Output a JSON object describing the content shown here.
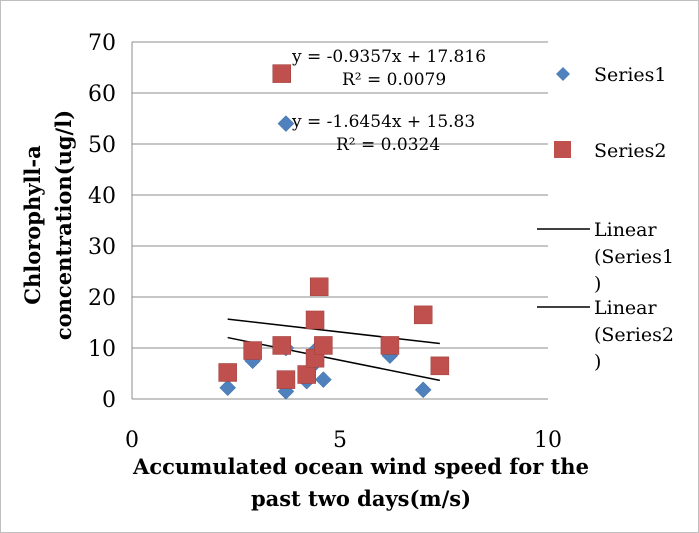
{
  "chart_data": {
    "type": "scatter",
    "title": "",
    "xlabel": [
      "Accumulated ocean wind speed for the",
      "past two days(m/s)"
    ],
    "ylabel": [
      "Chlorophyll-a",
      "concentration(ug/l)"
    ],
    "xlim": [
      0,
      10
    ],
    "ylim": [
      0,
      70
    ],
    "x_ticks": [
      "0",
      "5",
      "10"
    ],
    "y_ticks": [
      "0",
      "10",
      "20",
      "30",
      "40",
      "50",
      "60",
      "70"
    ],
    "grid": "horizontal",
    "legend_position": "right",
    "series": [
      {
        "name": "Series1",
        "marker": "diamond",
        "color": "#4f81bd",
        "points": [
          [
            2.3,
            2.2
          ],
          [
            2.9,
            7.5
          ],
          [
            2.9,
            9.5
          ],
          [
            3.7,
            1.5
          ],
          [
            3.7,
            54
          ],
          [
            3.7,
            10
          ],
          [
            4.2,
            3.5
          ],
          [
            4.4,
            7
          ],
          [
            4.4,
            9.5
          ],
          [
            4.6,
            3.8
          ],
          [
            6.2,
            8.5
          ],
          [
            7.0,
            1.8
          ],
          [
            7.4,
            6.5
          ]
        ]
      },
      {
        "name": "Series2",
        "marker": "square",
        "color": "#c0504d",
        "points": [
          [
            2.3,
            5.2
          ],
          [
            2.9,
            9.5
          ],
          [
            3.6,
            63.8
          ],
          [
            3.6,
            10.5
          ],
          [
            3.7,
            3.8
          ],
          [
            4.2,
            4.8
          ],
          [
            4.4,
            15.5
          ],
          [
            4.4,
            8
          ],
          [
            4.5,
            22
          ],
          [
            4.6,
            10.5
          ],
          [
            6.2,
            10.5
          ],
          [
            7.0,
            16.5
          ],
          [
            7.4,
            6.5
          ]
        ]
      }
    ],
    "trendlines": [
      {
        "name": "Linear (Series1)",
        "slope": -1.6454,
        "intercept": 15.83,
        "x_range": [
          2.3,
          7.4
        ],
        "equation": "y = -1.6454x + 15.83",
        "r2": "R² = 0.0324"
      },
      {
        "name": "Linear (Series2)",
        "slope": -0.9357,
        "intercept": 17.816,
        "x_range": [
          2.3,
          7.4
        ],
        "equation": "y = -0.9357x + 17.816",
        "r2": "R² = 0.0079"
      }
    ],
    "legend": [
      {
        "label": "Series1",
        "kind": "diamond"
      },
      {
        "label": "Series2",
        "kind": "square"
      },
      {
        "label": [
          "Linear",
          "(Series1",
          ")"
        ],
        "kind": "line"
      },
      {
        "label": [
          "Linear",
          "(Series2",
          ")"
        ],
        "kind": "line"
      }
    ]
  }
}
